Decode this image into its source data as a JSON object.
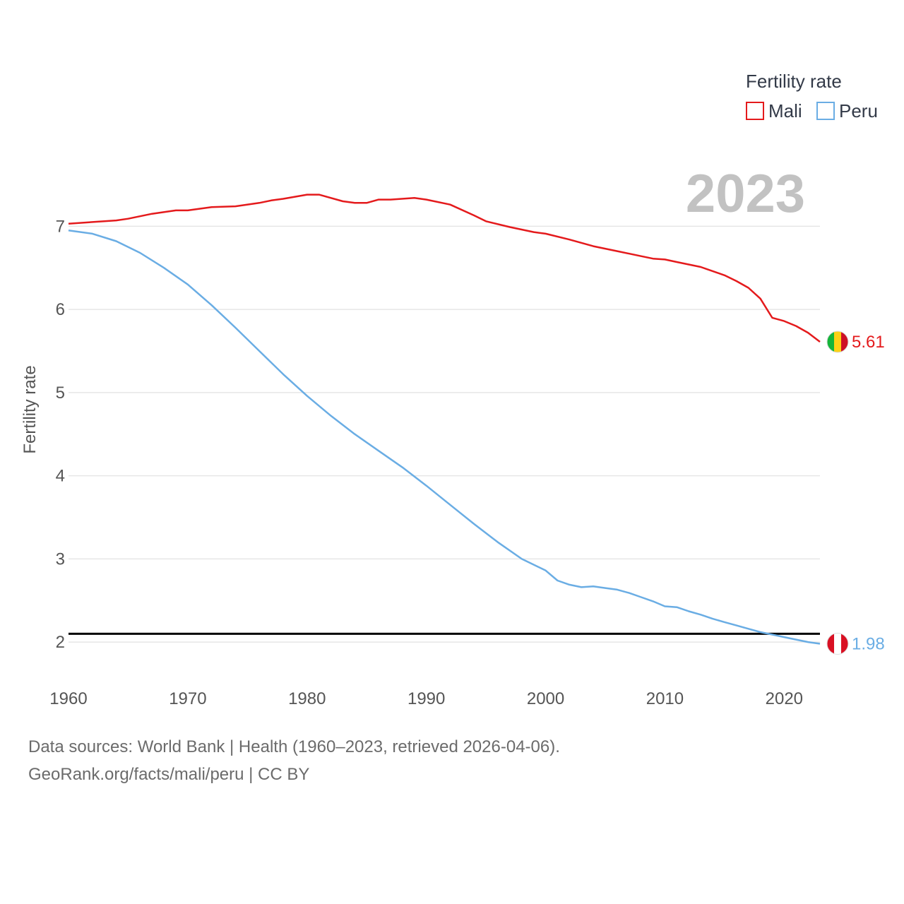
{
  "chart_data": {
    "type": "line",
    "ylabel": "Fertility rate",
    "xlabel": "",
    "xlim": [
      1960,
      2023
    ],
    "ylim": [
      1.5,
      7.75
    ],
    "x_ticks": [
      1960,
      1970,
      1980,
      1990,
      2000,
      2010,
      2020
    ],
    "y_ticks": [
      2,
      3,
      4,
      5,
      6,
      7
    ],
    "grid": true,
    "legend": {
      "title": "Fertility rate",
      "position": "top-right"
    },
    "current_year": "2023",
    "reference_line": {
      "value": 2.1,
      "color": "#000000"
    },
    "series": [
      {
        "name": "Mali",
        "color": "#e41a1c",
        "end_label": "5.61",
        "flag": {
          "colors": [
            "#14b53a",
            "#fcd116",
            "#ce1126"
          ],
          "orientation": "vertical"
        },
        "x": [
          1960,
          1962,
          1964,
          1965,
          1967,
          1969,
          1970,
          1972,
          1974,
          1976,
          1977,
          1978,
          1980,
          1981,
          1983,
          1984,
          1985,
          1986,
          1987,
          1989,
          1990,
          1992,
          1994,
          1995,
          1997,
          1999,
          2000,
          2002,
          2004,
          2006,
          2008,
          2009,
          2010,
          2011,
          2012,
          2013,
          2015,
          2016,
          2017,
          2018,
          2019,
          2020,
          2021,
          2022,
          2023
        ],
        "values": [
          7.03,
          7.05,
          7.07,
          7.09,
          7.15,
          7.19,
          7.19,
          7.23,
          7.24,
          7.28,
          7.31,
          7.33,
          7.38,
          7.38,
          7.3,
          7.28,
          7.28,
          7.32,
          7.32,
          7.34,
          7.32,
          7.26,
          7.13,
          7.06,
          6.99,
          6.93,
          6.91,
          6.84,
          6.76,
          6.7,
          6.64,
          6.61,
          6.6,
          6.57,
          6.54,
          6.51,
          6.41,
          6.34,
          6.26,
          6.13,
          5.9,
          5.86,
          5.8,
          5.72,
          5.61
        ]
      },
      {
        "name": "Peru",
        "color": "#6aade4",
        "end_label": "1.98",
        "flag": {
          "colors": [
            "#d91023",
            "#ffffff",
            "#d91023"
          ],
          "orientation": "vertical"
        },
        "x": [
          1960,
          1962,
          1964,
          1966,
          1968,
          1970,
          1972,
          1974,
          1976,
          1978,
          1980,
          1982,
          1984,
          1986,
          1988,
          1990,
          1992,
          1994,
          1996,
          1998,
          2000,
          2001,
          2002,
          2003,
          2004,
          2005,
          2006,
          2007,
          2008,
          2009,
          2010,
          2011,
          2012,
          2013,
          2014,
          2015,
          2016,
          2017,
          2018,
          2019,
          2020,
          2021,
          2022,
          2023
        ],
        "values": [
          6.95,
          6.91,
          6.82,
          6.68,
          6.5,
          6.3,
          6.05,
          5.78,
          5.5,
          5.22,
          4.96,
          4.72,
          4.5,
          4.3,
          4.1,
          3.88,
          3.65,
          3.42,
          3.2,
          3.0,
          2.86,
          2.74,
          2.69,
          2.66,
          2.67,
          2.65,
          2.63,
          2.59,
          2.54,
          2.49,
          2.43,
          2.42,
          2.37,
          2.33,
          2.28,
          2.24,
          2.2,
          2.16,
          2.12,
          2.09,
          2.06,
          2.03,
          2.0,
          1.98
        ]
      }
    ]
  },
  "footer": {
    "line1": "Data sources: World Bank | Health (1960–2023, retrieved 2026-04-06).",
    "line2": "GeoRank.org/facts/mali/peru | CC BY"
  }
}
